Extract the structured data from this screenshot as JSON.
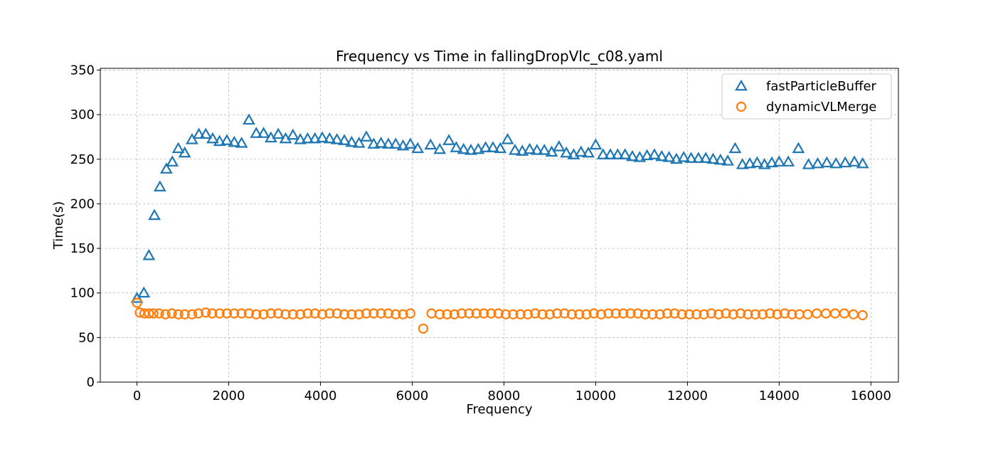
{
  "chart_data": {
    "type": "scatter",
    "title": "Frequency vs Time in fallingDropVlc_c08.yaml",
    "xlabel": "Frequency",
    "ylabel": "Time(s)",
    "xlim": [
      -800,
      16600
    ],
    "ylim": [
      0,
      352
    ],
    "xticks": [
      0,
      2000,
      4000,
      6000,
      8000,
      10000,
      12000,
      14000,
      16000
    ],
    "yticks": [
      0,
      50,
      100,
      150,
      200,
      250,
      300,
      350
    ],
    "grid": true,
    "legend_position": "top-right",
    "series": [
      {
        "name": "fastParticleBuffer",
        "marker": "triangle",
        "color": "#1f77b4",
        "points": [
          [
            0,
            94
          ],
          [
            150,
            100
          ],
          [
            260,
            142
          ],
          [
            380,
            187
          ],
          [
            500,
            219
          ],
          [
            640,
            239
          ],
          [
            770,
            247
          ],
          [
            900,
            262
          ],
          [
            1040,
            257
          ],
          [
            1200,
            272
          ],
          [
            1350,
            278
          ],
          [
            1500,
            278
          ],
          [
            1650,
            273
          ],
          [
            1800,
            270
          ],
          [
            1960,
            271
          ],
          [
            2120,
            269
          ],
          [
            2280,
            268
          ],
          [
            2440,
            294
          ],
          [
            2600,
            279
          ],
          [
            2760,
            279
          ],
          [
            2920,
            274
          ],
          [
            3080,
            278
          ],
          [
            3240,
            273
          ],
          [
            3400,
            277
          ],
          [
            3560,
            272
          ],
          [
            3720,
            273
          ],
          [
            3880,
            273
          ],
          [
            4040,
            274
          ],
          [
            4200,
            273
          ],
          [
            4360,
            272
          ],
          [
            4520,
            271
          ],
          [
            4680,
            269
          ],
          [
            4840,
            268
          ],
          [
            5000,
            275
          ],
          [
            5160,
            267
          ],
          [
            5320,
            268
          ],
          [
            5480,
            267
          ],
          [
            5640,
            267
          ],
          [
            5800,
            265
          ],
          [
            5960,
            267
          ],
          [
            6120,
            262
          ],
          [
            6400,
            266
          ],
          [
            6600,
            261
          ],
          [
            6800,
            271
          ],
          [
            6960,
            263
          ],
          [
            7120,
            261
          ],
          [
            7280,
            260
          ],
          [
            7440,
            261
          ],
          [
            7600,
            263
          ],
          [
            7760,
            263
          ],
          [
            7920,
            262
          ],
          [
            8080,
            272
          ],
          [
            8240,
            260
          ],
          [
            8400,
            259
          ],
          [
            8560,
            261
          ],
          [
            8720,
            260
          ],
          [
            8880,
            260
          ],
          [
            9040,
            258
          ],
          [
            9200,
            264
          ],
          [
            9360,
            257
          ],
          [
            9520,
            255
          ],
          [
            9680,
            258
          ],
          [
            9840,
            257
          ],
          [
            10000,
            266
          ],
          [
            10160,
            255
          ],
          [
            10320,
            255
          ],
          [
            10480,
            255
          ],
          [
            10640,
            255
          ],
          [
            10800,
            253
          ],
          [
            10960,
            252
          ],
          [
            11120,
            254
          ],
          [
            11280,
            255
          ],
          [
            11440,
            253
          ],
          [
            11600,
            252
          ],
          [
            11760,
            250
          ],
          [
            11920,
            252
          ],
          [
            12080,
            251
          ],
          [
            12240,
            251
          ],
          [
            12400,
            251
          ],
          [
            12560,
            250
          ],
          [
            12720,
            249
          ],
          [
            12880,
            248
          ],
          [
            13040,
            262
          ],
          [
            13200,
            244
          ],
          [
            13360,
            245
          ],
          [
            13520,
            246
          ],
          [
            13680,
            244
          ],
          [
            13840,
            246
          ],
          [
            14000,
            247
          ],
          [
            14200,
            247
          ],
          [
            14420,
            262
          ],
          [
            14640,
            244
          ],
          [
            14840,
            245
          ],
          [
            15040,
            246
          ],
          [
            15240,
            245
          ],
          [
            15440,
            246
          ],
          [
            15640,
            247
          ],
          [
            15820,
            245
          ]
        ]
      },
      {
        "name": "dynamicVLMerge",
        "marker": "circle",
        "color": "#ff7f0e",
        "points": [
          [
            0,
            89
          ],
          [
            60,
            78
          ],
          [
            160,
            77
          ],
          [
            260,
            77
          ],
          [
            360,
            77
          ],
          [
            480,
            77
          ],
          [
            620,
            76
          ],
          [
            760,
            77
          ],
          [
            900,
            76
          ],
          [
            1040,
            76
          ],
          [
            1200,
            76
          ],
          [
            1340,
            77
          ],
          [
            1500,
            78
          ],
          [
            1640,
            77
          ],
          [
            1800,
            77
          ],
          [
            1960,
            77
          ],
          [
            2120,
            77
          ],
          [
            2280,
            77
          ],
          [
            2440,
            77
          ],
          [
            2600,
            76
          ],
          [
            2760,
            76
          ],
          [
            2920,
            77
          ],
          [
            3080,
            77
          ],
          [
            3240,
            76
          ],
          [
            3400,
            76
          ],
          [
            3560,
            76
          ],
          [
            3720,
            77
          ],
          [
            3880,
            77
          ],
          [
            4040,
            76
          ],
          [
            4200,
            77
          ],
          [
            4360,
            77
          ],
          [
            4520,
            76
          ],
          [
            4680,
            76
          ],
          [
            4840,
            76
          ],
          [
            5000,
            77
          ],
          [
            5160,
            77
          ],
          [
            5320,
            77
          ],
          [
            5480,
            77
          ],
          [
            5640,
            76
          ],
          [
            5800,
            76
          ],
          [
            5960,
            77
          ],
          [
            6240,
            60
          ],
          [
            6420,
            77
          ],
          [
            6600,
            76
          ],
          [
            6760,
            76
          ],
          [
            6920,
            76
          ],
          [
            7080,
            77
          ],
          [
            7240,
            77
          ],
          [
            7400,
            77
          ],
          [
            7560,
            77
          ],
          [
            7720,
            77
          ],
          [
            7880,
            77
          ],
          [
            8040,
            76
          ],
          [
            8200,
            76
          ],
          [
            8360,
            76
          ],
          [
            8520,
            76
          ],
          [
            8680,
            77
          ],
          [
            8840,
            76
          ],
          [
            9000,
            76
          ],
          [
            9160,
            77
          ],
          [
            9320,
            77
          ],
          [
            9480,
            76
          ],
          [
            9640,
            76
          ],
          [
            9800,
            76
          ],
          [
            9960,
            77
          ],
          [
            10120,
            76
          ],
          [
            10280,
            77
          ],
          [
            10440,
            77
          ],
          [
            10600,
            77
          ],
          [
            10760,
            77
          ],
          [
            10920,
            77
          ],
          [
            11080,
            76
          ],
          [
            11240,
            76
          ],
          [
            11400,
            76
          ],
          [
            11560,
            77
          ],
          [
            11720,
            77
          ],
          [
            11880,
            76
          ],
          [
            12040,
            76
          ],
          [
            12200,
            76
          ],
          [
            12360,
            76
          ],
          [
            12520,
            77
          ],
          [
            12680,
            76
          ],
          [
            12840,
            77
          ],
          [
            13000,
            76
          ],
          [
            13160,
            77
          ],
          [
            13320,
            76
          ],
          [
            13480,
            76
          ],
          [
            13640,
            76
          ],
          [
            13800,
            77
          ],
          [
            13960,
            76
          ],
          [
            14120,
            77
          ],
          [
            14280,
            76
          ],
          [
            14440,
            76
          ],
          [
            14620,
            76
          ],
          [
            14820,
            77
          ],
          [
            15020,
            77
          ],
          [
            15220,
            77
          ],
          [
            15420,
            77
          ],
          [
            15620,
            76
          ],
          [
            15820,
            75
          ]
        ]
      }
    ]
  }
}
